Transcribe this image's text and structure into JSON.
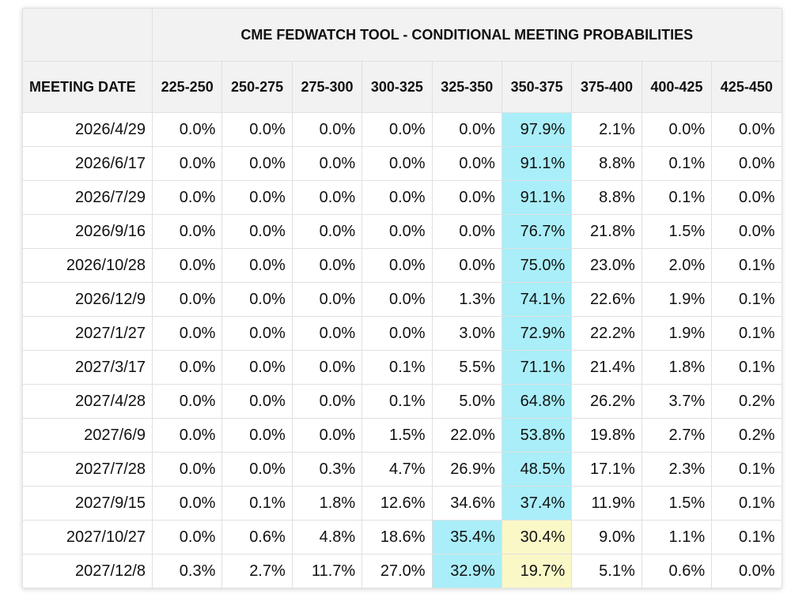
{
  "title": "CME FEDWATCH TOOL - CONDITIONAL MEETING PROBABILITIES",
  "date_header": "MEETING DATE",
  "columns": [
    "225-250",
    "250-275",
    "275-300",
    "300-325",
    "325-350",
    "350-375",
    "375-400",
    "400-425",
    "425-450"
  ],
  "colors": {
    "highlight_blue": "#a9eef8",
    "highlight_yellow": "#fbf8c8",
    "header_bg": "#f2f2f2"
  },
  "rows": [
    {
      "date": "2026/4/29",
      "values": [
        "0.0%",
        "0.0%",
        "0.0%",
        "0.0%",
        "0.0%",
        "97.9%",
        "2.1%",
        "0.0%",
        "0.0%"
      ],
      "highlights": {
        "5": "blue"
      }
    },
    {
      "date": "2026/6/17",
      "values": [
        "0.0%",
        "0.0%",
        "0.0%",
        "0.0%",
        "0.0%",
        "91.1%",
        "8.8%",
        "0.1%",
        "0.0%"
      ],
      "highlights": {
        "5": "blue"
      }
    },
    {
      "date": "2026/7/29",
      "values": [
        "0.0%",
        "0.0%",
        "0.0%",
        "0.0%",
        "0.0%",
        "91.1%",
        "8.8%",
        "0.1%",
        "0.0%"
      ],
      "highlights": {
        "5": "blue"
      }
    },
    {
      "date": "2026/9/16",
      "values": [
        "0.0%",
        "0.0%",
        "0.0%",
        "0.0%",
        "0.0%",
        "76.7%",
        "21.8%",
        "1.5%",
        "0.0%"
      ],
      "highlights": {
        "5": "blue"
      }
    },
    {
      "date": "2026/10/28",
      "values": [
        "0.0%",
        "0.0%",
        "0.0%",
        "0.0%",
        "0.0%",
        "75.0%",
        "23.0%",
        "2.0%",
        "0.1%"
      ],
      "highlights": {
        "5": "blue"
      }
    },
    {
      "date": "2026/12/9",
      "values": [
        "0.0%",
        "0.0%",
        "0.0%",
        "0.0%",
        "1.3%",
        "74.1%",
        "22.6%",
        "1.9%",
        "0.1%"
      ],
      "highlights": {
        "5": "blue"
      }
    },
    {
      "date": "2027/1/27",
      "values": [
        "0.0%",
        "0.0%",
        "0.0%",
        "0.0%",
        "3.0%",
        "72.9%",
        "22.2%",
        "1.9%",
        "0.1%"
      ],
      "highlights": {
        "5": "blue"
      }
    },
    {
      "date": "2027/3/17",
      "values": [
        "0.0%",
        "0.0%",
        "0.0%",
        "0.1%",
        "5.5%",
        "71.1%",
        "21.4%",
        "1.8%",
        "0.1%"
      ],
      "highlights": {
        "5": "blue"
      }
    },
    {
      "date": "2027/4/28",
      "values": [
        "0.0%",
        "0.0%",
        "0.0%",
        "0.1%",
        "5.0%",
        "64.8%",
        "26.2%",
        "3.7%",
        "0.2%"
      ],
      "highlights": {
        "5": "blue"
      }
    },
    {
      "date": "2027/6/9",
      "values": [
        "0.0%",
        "0.0%",
        "0.0%",
        "1.5%",
        "22.0%",
        "53.8%",
        "19.8%",
        "2.7%",
        "0.2%"
      ],
      "highlights": {
        "5": "blue"
      }
    },
    {
      "date": "2027/7/28",
      "values": [
        "0.0%",
        "0.0%",
        "0.3%",
        "4.7%",
        "26.9%",
        "48.5%",
        "17.1%",
        "2.3%",
        "0.1%"
      ],
      "highlights": {
        "5": "blue"
      }
    },
    {
      "date": "2027/9/15",
      "values": [
        "0.0%",
        "0.1%",
        "1.8%",
        "12.6%",
        "34.6%",
        "37.4%",
        "11.9%",
        "1.5%",
        "0.1%"
      ],
      "highlights": {
        "5": "blue"
      }
    },
    {
      "date": "2027/10/27",
      "values": [
        "0.0%",
        "0.6%",
        "4.8%",
        "18.6%",
        "35.4%",
        "30.4%",
        "9.0%",
        "1.1%",
        "0.1%"
      ],
      "highlights": {
        "4": "blue",
        "5": "yellow"
      }
    },
    {
      "date": "2027/12/8",
      "values": [
        "0.3%",
        "2.7%",
        "11.7%",
        "27.0%",
        "32.9%",
        "19.7%",
        "5.1%",
        "0.6%",
        "0.0%"
      ],
      "highlights": {
        "4": "blue",
        "5": "yellow"
      }
    }
  ]
}
